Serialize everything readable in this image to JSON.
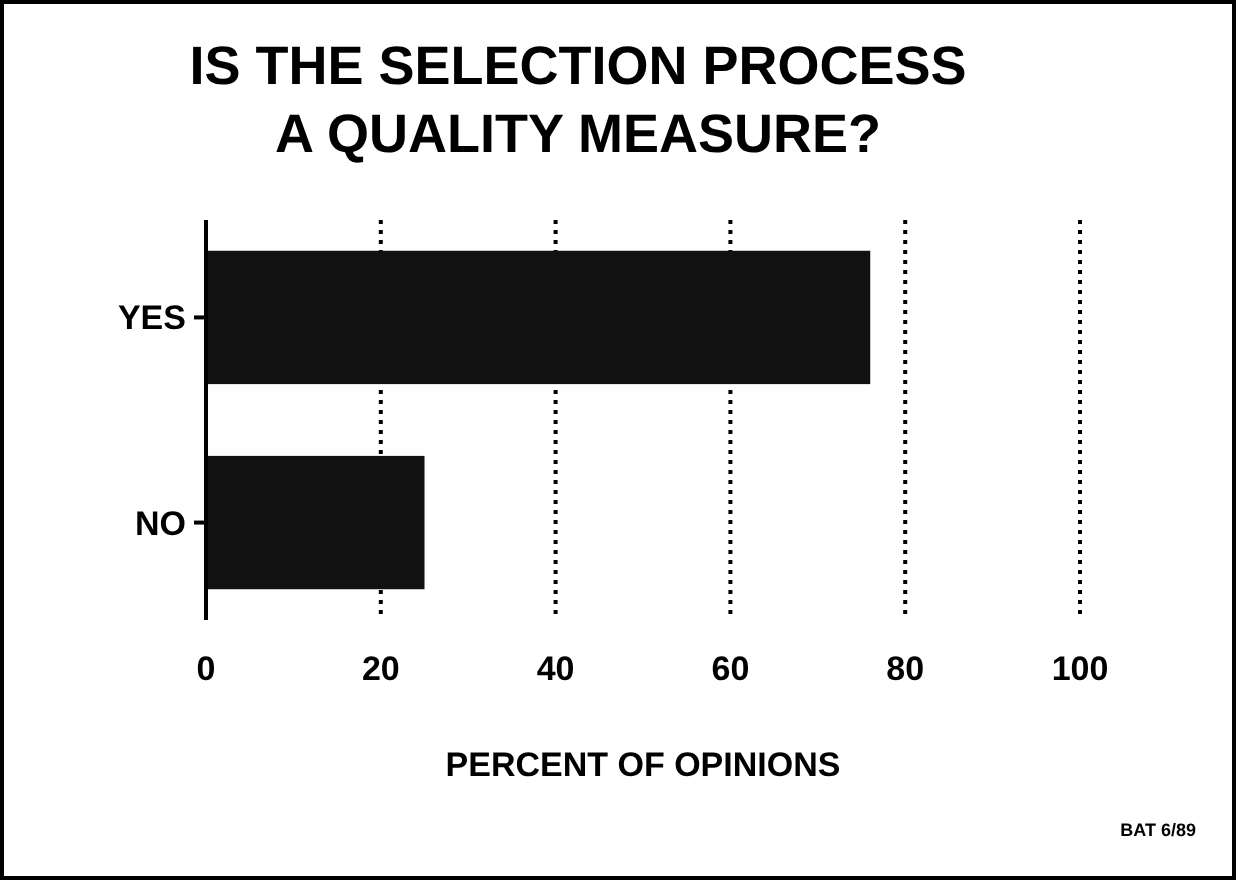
{
  "chart_data": {
    "type": "bar",
    "orientation": "horizontal",
    "title": "IS THE SELECTION PROCESS\nA QUALITY MEASURE?",
    "categories": [
      "YES",
      "NO"
    ],
    "values": [
      76,
      25
    ],
    "color": "#111111",
    "xlim": [
      0,
      100
    ],
    "xticks": [
      0,
      20,
      40,
      60,
      80,
      100
    ],
    "grid": "x",
    "xlabel": "PERCENT OF OPINIONS",
    "annotations": [
      "BAT 6/89"
    ]
  }
}
